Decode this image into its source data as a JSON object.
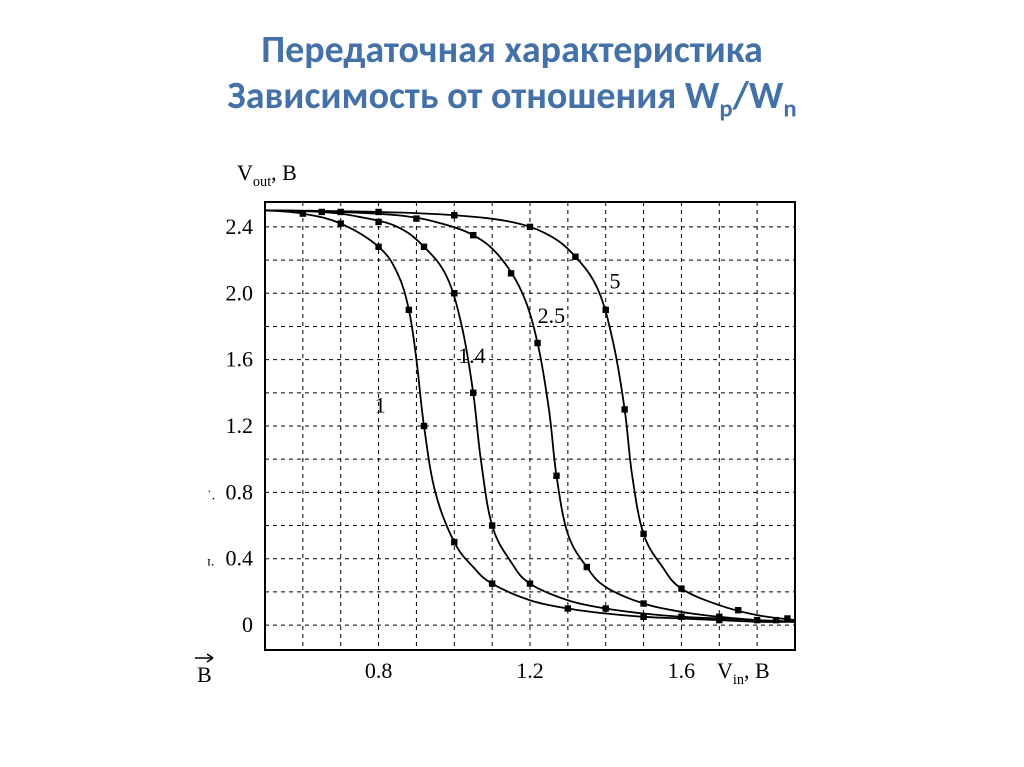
{
  "title": {
    "line1": "Передаточная характеристика",
    "line2_pre": "Зависимость от отношения W",
    "line2_sub1": "p",
    "line2_mid": "/W",
    "line2_sub2": "n",
    "color": "#4472a8",
    "fontsize": 38
  },
  "chart": {
    "type": "line",
    "background_color": "#ffffff",
    "axis_color": "#000000",
    "grid_color": "#000000",
    "grid_dash": "4 4",
    "line_color": "#000000",
    "line_width": 1.8,
    "marker_color": "#000000",
    "marker_size": 3.2,
    "tick_fontsize": 22,
    "label_fontsize": 22,
    "ylabel_top": "V",
    "ylabel_top_sub": "out",
    "ylabel_top_unit": ", В",
    "xlabel_right": "V",
    "xlabel_right_sub": "in",
    "xlabel_right_unit": ", В",
    "arrow_label": "В",
    "xlim": [
      0.5,
      1.9
    ],
    "ylim": [
      -0.15,
      2.55
    ],
    "x_ticks": [
      0.8,
      1.2,
      1.6
    ],
    "y_ticks": [
      0,
      0.4,
      0.8,
      1.2,
      1.6,
      2.0,
      2.4
    ],
    "x_grid": [
      0.6,
      0.7,
      0.8,
      0.9,
      1.0,
      1.1,
      1.2,
      1.3,
      1.4,
      1.5,
      1.6,
      1.7,
      1.8
    ],
    "y_grid": [
      0,
      0.2,
      0.4,
      0.6,
      0.8,
      1.0,
      1.2,
      1.4,
      1.6,
      1.8,
      2.0,
      2.2,
      2.4
    ],
    "series": [
      {
        "label": "1",
        "label_x": 0.79,
        "label_y": 1.28,
        "points": [
          [
            0.5,
            2.5
          ],
          [
            0.6,
            2.48
          ],
          [
            0.7,
            2.42
          ],
          [
            0.8,
            2.28
          ],
          [
            0.85,
            2.12
          ],
          [
            0.88,
            1.9
          ],
          [
            0.9,
            1.6
          ],
          [
            0.92,
            1.2
          ],
          [
            0.95,
            0.8
          ],
          [
            1.0,
            0.5
          ],
          [
            1.05,
            0.35
          ],
          [
            1.1,
            0.25
          ],
          [
            1.2,
            0.15
          ],
          [
            1.3,
            0.1
          ],
          [
            1.4,
            0.07
          ],
          [
            1.5,
            0.05
          ],
          [
            1.6,
            0.04
          ],
          [
            1.7,
            0.03
          ],
          [
            1.8,
            0.02
          ],
          [
            1.9,
            0.02
          ]
        ],
        "markers": [
          [
            0.6,
            2.48
          ],
          [
            0.7,
            2.42
          ],
          [
            0.8,
            2.28
          ],
          [
            0.88,
            1.9
          ],
          [
            0.92,
            1.2
          ],
          [
            1.0,
            0.5
          ],
          [
            1.1,
            0.25
          ],
          [
            1.3,
            0.1
          ],
          [
            1.5,
            0.05
          ],
          [
            1.7,
            0.03
          ]
        ]
      },
      {
        "label": "1.4",
        "label_x": 1.01,
        "label_y": 1.58,
        "points": [
          [
            0.5,
            2.5
          ],
          [
            0.65,
            2.49
          ],
          [
            0.75,
            2.46
          ],
          [
            0.85,
            2.4
          ],
          [
            0.92,
            2.28
          ],
          [
            0.98,
            2.1
          ],
          [
            1.02,
            1.8
          ],
          [
            1.05,
            1.4
          ],
          [
            1.07,
            1.0
          ],
          [
            1.1,
            0.6
          ],
          [
            1.15,
            0.38
          ],
          [
            1.2,
            0.25
          ],
          [
            1.3,
            0.15
          ],
          [
            1.4,
            0.1
          ],
          [
            1.5,
            0.07
          ],
          [
            1.6,
            0.05
          ],
          [
            1.7,
            0.04
          ],
          [
            1.8,
            0.03
          ],
          [
            1.9,
            0.02
          ]
        ],
        "markers": [
          [
            0.65,
            2.49
          ],
          [
            0.8,
            2.43
          ],
          [
            0.92,
            2.28
          ],
          [
            1.0,
            2.0
          ],
          [
            1.05,
            1.4
          ],
          [
            1.1,
            0.6
          ],
          [
            1.2,
            0.25
          ],
          [
            1.4,
            0.1
          ],
          [
            1.6,
            0.05
          ],
          [
            1.8,
            0.03
          ]
        ]
      },
      {
        "label": "2.5",
        "label_x": 1.22,
        "label_y": 1.82,
        "points": [
          [
            0.5,
            2.5
          ],
          [
            0.7,
            2.49
          ],
          [
            0.85,
            2.47
          ],
          [
            0.95,
            2.43
          ],
          [
            1.05,
            2.35
          ],
          [
            1.12,
            2.22
          ],
          [
            1.18,
            2.0
          ],
          [
            1.22,
            1.7
          ],
          [
            1.25,
            1.3
          ],
          [
            1.27,
            0.9
          ],
          [
            1.3,
            0.55
          ],
          [
            1.35,
            0.35
          ],
          [
            1.4,
            0.23
          ],
          [
            1.5,
            0.13
          ],
          [
            1.6,
            0.08
          ],
          [
            1.7,
            0.05
          ],
          [
            1.8,
            0.03
          ],
          [
            1.9,
            0.02
          ]
        ],
        "markers": [
          [
            0.7,
            2.49
          ],
          [
            0.9,
            2.45
          ],
          [
            1.05,
            2.35
          ],
          [
            1.15,
            2.12
          ],
          [
            1.22,
            1.7
          ],
          [
            1.27,
            0.9
          ],
          [
            1.35,
            0.35
          ],
          [
            1.5,
            0.13
          ],
          [
            1.7,
            0.05
          ],
          [
            1.85,
            0.03
          ]
        ]
      },
      {
        "label": "5",
        "label_x": 1.41,
        "label_y": 2.03,
        "points": [
          [
            0.5,
            2.5
          ],
          [
            0.8,
            2.49
          ],
          [
            1.0,
            2.47
          ],
          [
            1.15,
            2.43
          ],
          [
            1.25,
            2.35
          ],
          [
            1.32,
            2.22
          ],
          [
            1.38,
            2.02
          ],
          [
            1.42,
            1.7
          ],
          [
            1.45,
            1.3
          ],
          [
            1.47,
            0.9
          ],
          [
            1.5,
            0.55
          ],
          [
            1.55,
            0.35
          ],
          [
            1.6,
            0.22
          ],
          [
            1.7,
            0.12
          ],
          [
            1.8,
            0.06
          ],
          [
            1.9,
            0.03
          ]
        ],
        "markers": [
          [
            0.8,
            2.49
          ],
          [
            1.0,
            2.47
          ],
          [
            1.2,
            2.4
          ],
          [
            1.32,
            2.22
          ],
          [
            1.4,
            1.9
          ],
          [
            1.45,
            1.3
          ],
          [
            1.5,
            0.55
          ],
          [
            1.6,
            0.22
          ],
          [
            1.75,
            0.09
          ],
          [
            1.88,
            0.04
          ]
        ]
      }
    ]
  }
}
